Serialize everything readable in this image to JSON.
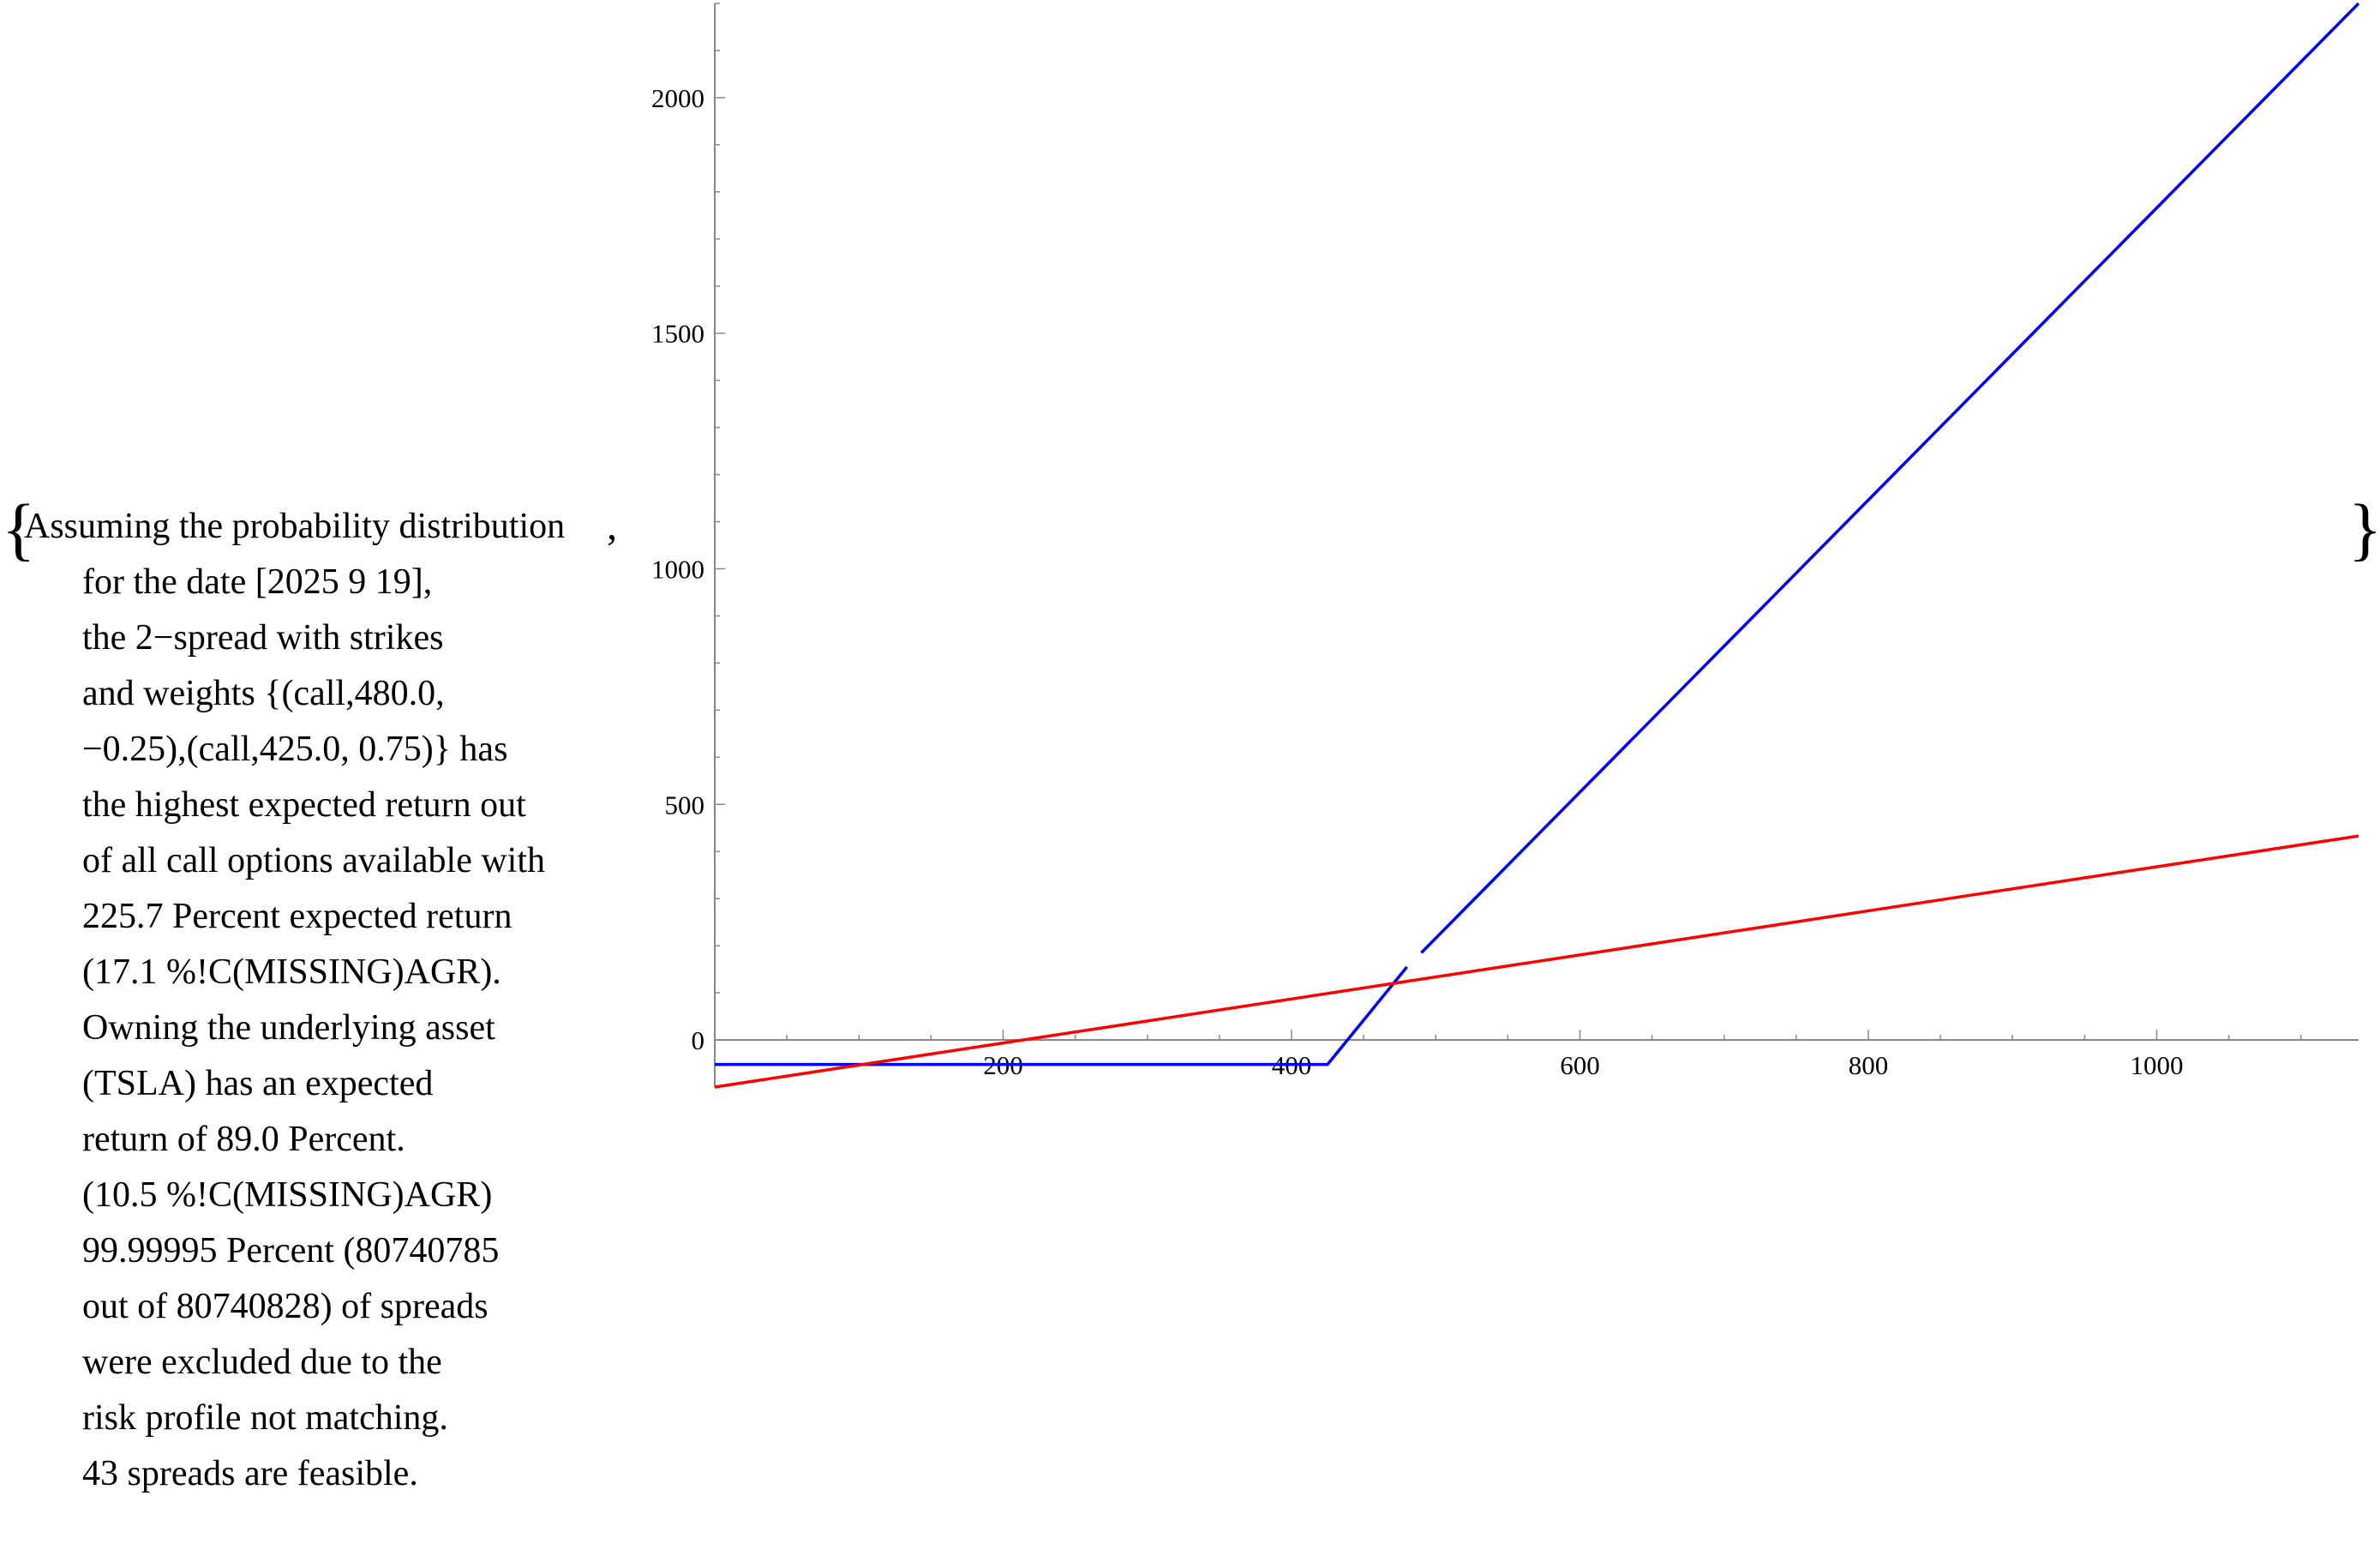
{
  "brackets": {
    "open": "{",
    "separator": ",",
    "close": "}"
  },
  "description_lines": [
    "Assuming the probability distribution",
    "for the date [2025 9 19],",
    "the 2−spread with strikes",
    "and weights {(call,480.0,",
    "−0.25),(call,425.0, 0.75)} has",
    "the highest expected return out",
    "of all call options available with",
    "225.7 Percent expected return",
    "(17.1 %!C(MISSING)AGR).",
    "Owning the underlying asset",
    "(TSLA) has an expected",
    "return of 89.0 Percent.",
    "(10.5 %!C(MISSING)AGR)",
    "99.99995 Percent (80740785",
    "out of 80740828) of spreads",
    "were excluded due to the",
    "risk profile not matching.",
    "43 spreads are feasible."
  ],
  "chart_data": {
    "type": "line",
    "title": "",
    "xlabel": "",
    "ylabel": "",
    "xlim": [
      0,
      1140
    ],
    "ylim": [
      -100,
      2200
    ],
    "x_ticks": [
      200,
      400,
      600,
      800,
      1000
    ],
    "x_tick_labels": [
      "200",
      "400",
      "600",
      "800",
      "1000"
    ],
    "y_ticks": [
      0,
      500,
      1000,
      1500,
      2000
    ],
    "y_tick_labels": [
      "0",
      "500",
      "1000",
      "1500",
      "2000"
    ],
    "x_minor_step": 50,
    "y_minor_step": 100,
    "grid": false,
    "legend": "none",
    "series": [
      {
        "color": "#0000ff",
        "segments": [
          [
            [
              0,
              -52
            ],
            [
              425,
              -52
            ],
            [
              480,
              155
            ]
          ],
          [
            [
              490,
              185
            ],
            [
              1140,
              2200
            ]
          ]
        ]
      },
      {
        "color": "#ff0000",
        "segments": [
          [
            [
              0,
              -100
            ],
            [
              1140,
              433
            ]
          ]
        ]
      }
    ]
  }
}
